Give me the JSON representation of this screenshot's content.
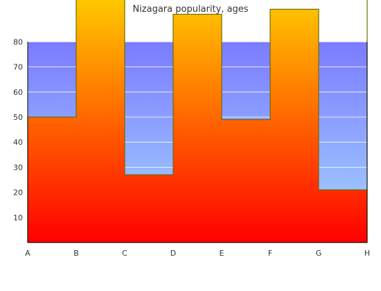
{
  "chart_data": {
    "type": "area",
    "title": "Nizagara popularity, ages",
    "xlabel": "",
    "ylabel": "",
    "categories": [
      "A",
      "B",
      "C",
      "D",
      "E",
      "F",
      "G",
      "H"
    ],
    "values": [
      50,
      100,
      27,
      91,
      49,
      93,
      21,
      100
    ],
    "ylim": [
      0,
      80
    ],
    "yticks": [
      "10",
      "20",
      "30",
      "40",
      "50",
      "60",
      "70",
      "80"
    ],
    "grid": true,
    "legend": "none",
    "colors": {
      "background_top": "#7b7bff",
      "background_bottom": "#a6d8ff",
      "area_top": "#ffc800",
      "area_bottom": "#ff0000",
      "area_outline": "#6b6b00",
      "gridline": "#ffffff",
      "axis": "#000000"
    }
  }
}
